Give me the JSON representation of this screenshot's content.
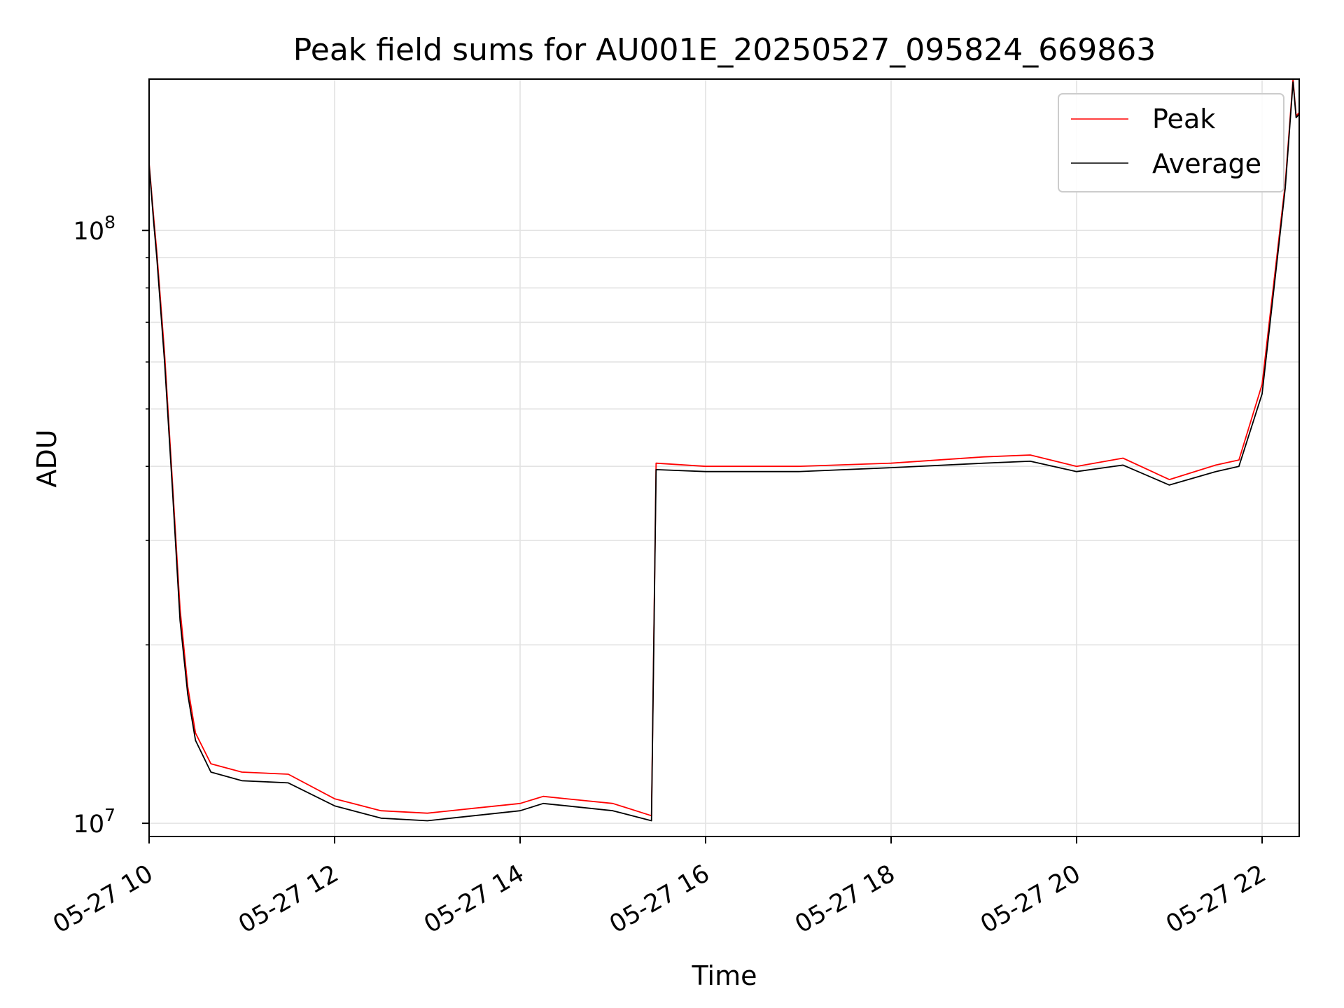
{
  "chart_data": {
    "type": "line",
    "title": "Peak field sums for AU001E_20250527_095824_669863",
    "xlabel": "Time",
    "ylabel": "ADU",
    "y_scale": "log",
    "ylim": [
      9500000,
      180000000
    ],
    "xlim": [
      "2025-05-27T10:00",
      "2025-05-27T22:24"
    ],
    "grid": true,
    "legend_position": "top-right",
    "x_ticks": [
      {
        "t": "2025-05-27T10:00",
        "label": "05-27 10"
      },
      {
        "t": "2025-05-27T12:00",
        "label": "05-27 12"
      },
      {
        "t": "2025-05-27T14:00",
        "label": "05-27 14"
      },
      {
        "t": "2025-05-27T16:00",
        "label": "05-27 16"
      },
      {
        "t": "2025-05-27T18:00",
        "label": "05-27 18"
      },
      {
        "t": "2025-05-27T20:00",
        "label": "05-27 20"
      },
      {
        "t": "2025-05-27T22:00",
        "label": "05-27 22"
      }
    ],
    "y_ticks": [
      {
        "value": 10000000,
        "base": "10",
        "exp": "7"
      },
      {
        "value": 100000000,
        "base": "10",
        "exp": "8"
      }
    ],
    "series": [
      {
        "name": "Peak",
        "color": "#ff0000",
        "points": [
          [
            "2025-05-27T10:00",
            130000000
          ],
          [
            "2025-05-27T10:03",
            105000000
          ],
          [
            "2025-05-27T10:05",
            92000000
          ],
          [
            "2025-05-27T10:10",
            62000000
          ],
          [
            "2025-05-27T10:15",
            38000000
          ],
          [
            "2025-05-27T10:20",
            23000000
          ],
          [
            "2025-05-27T10:25",
            17000000
          ],
          [
            "2025-05-27T10:30",
            14200000
          ],
          [
            "2025-05-27T10:40",
            12600000
          ],
          [
            "2025-05-27T11:00",
            12200000
          ],
          [
            "2025-05-27T11:30",
            12100000
          ],
          [
            "2025-05-27T12:00",
            11000000
          ],
          [
            "2025-05-27T12:30",
            10500000
          ],
          [
            "2025-05-27T13:00",
            10400000
          ],
          [
            "2025-05-27T13:30",
            10600000
          ],
          [
            "2025-05-27T14:00",
            10800000
          ],
          [
            "2025-05-27T14:15",
            11100000
          ],
          [
            "2025-05-27T14:30",
            11000000
          ],
          [
            "2025-05-27T15:00",
            10800000
          ],
          [
            "2025-05-27T15:25",
            10300000
          ],
          [
            "2025-05-27T15:28",
            40500000
          ],
          [
            "2025-05-27T16:00",
            40000000
          ],
          [
            "2025-05-27T17:00",
            40000000
          ],
          [
            "2025-05-27T18:00",
            40500000
          ],
          [
            "2025-05-27T19:00",
            41500000
          ],
          [
            "2025-05-27T19:30",
            41800000
          ],
          [
            "2025-05-27T20:00",
            40000000
          ],
          [
            "2025-05-27T20:30",
            41300000
          ],
          [
            "2025-05-27T21:00",
            38000000
          ],
          [
            "2025-05-27T21:30",
            40200000
          ],
          [
            "2025-05-27T21:45",
            41000000
          ],
          [
            "2025-05-27T22:00",
            55000000
          ],
          [
            "2025-05-27T22:15",
            120000000
          ],
          [
            "2025-05-27T22:20",
            180000000
          ],
          [
            "2025-05-27T22:22",
            156000000
          ],
          [
            "2025-05-27T22:24",
            158000000
          ]
        ]
      },
      {
        "name": "Average",
        "color": "#000000",
        "points": [
          [
            "2025-05-27T10:00",
            129000000
          ],
          [
            "2025-05-27T10:03",
            103000000
          ],
          [
            "2025-05-27T10:05",
            90000000
          ],
          [
            "2025-05-27T10:10",
            60000000
          ],
          [
            "2025-05-27T10:15",
            37000000
          ],
          [
            "2025-05-27T10:20",
            22000000
          ],
          [
            "2025-05-27T10:25",
            16500000
          ],
          [
            "2025-05-27T10:30",
            13800000
          ],
          [
            "2025-05-27T10:40",
            12200000
          ],
          [
            "2025-05-27T11:00",
            11800000
          ],
          [
            "2025-05-27T11:30",
            11700000
          ],
          [
            "2025-05-27T12:00",
            10700000
          ],
          [
            "2025-05-27T12:30",
            10200000
          ],
          [
            "2025-05-27T13:00",
            10100000
          ],
          [
            "2025-05-27T13:30",
            10300000
          ],
          [
            "2025-05-27T14:00",
            10500000
          ],
          [
            "2025-05-27T14:15",
            10800000
          ],
          [
            "2025-05-27T14:30",
            10700000
          ],
          [
            "2025-05-27T15:00",
            10500000
          ],
          [
            "2025-05-27T15:25",
            10100000
          ],
          [
            "2025-05-27T15:28",
            39500000
          ],
          [
            "2025-05-27T16:00",
            39200000
          ],
          [
            "2025-05-27T17:00",
            39200000
          ],
          [
            "2025-05-27T18:00",
            39800000
          ],
          [
            "2025-05-27T19:00",
            40500000
          ],
          [
            "2025-05-27T19:30",
            40800000
          ],
          [
            "2025-05-27T20:00",
            39200000
          ],
          [
            "2025-05-27T20:30",
            40200000
          ],
          [
            "2025-05-27T21:00",
            37200000
          ],
          [
            "2025-05-27T21:30",
            39200000
          ],
          [
            "2025-05-27T21:45",
            40000000
          ],
          [
            "2025-05-27T22:00",
            53000000
          ],
          [
            "2025-05-27T22:15",
            118000000
          ],
          [
            "2025-05-27T22:20",
            178000000
          ],
          [
            "2025-05-27T22:22",
            155000000
          ],
          [
            "2025-05-27T22:24",
            157000000
          ]
        ]
      }
    ]
  }
}
